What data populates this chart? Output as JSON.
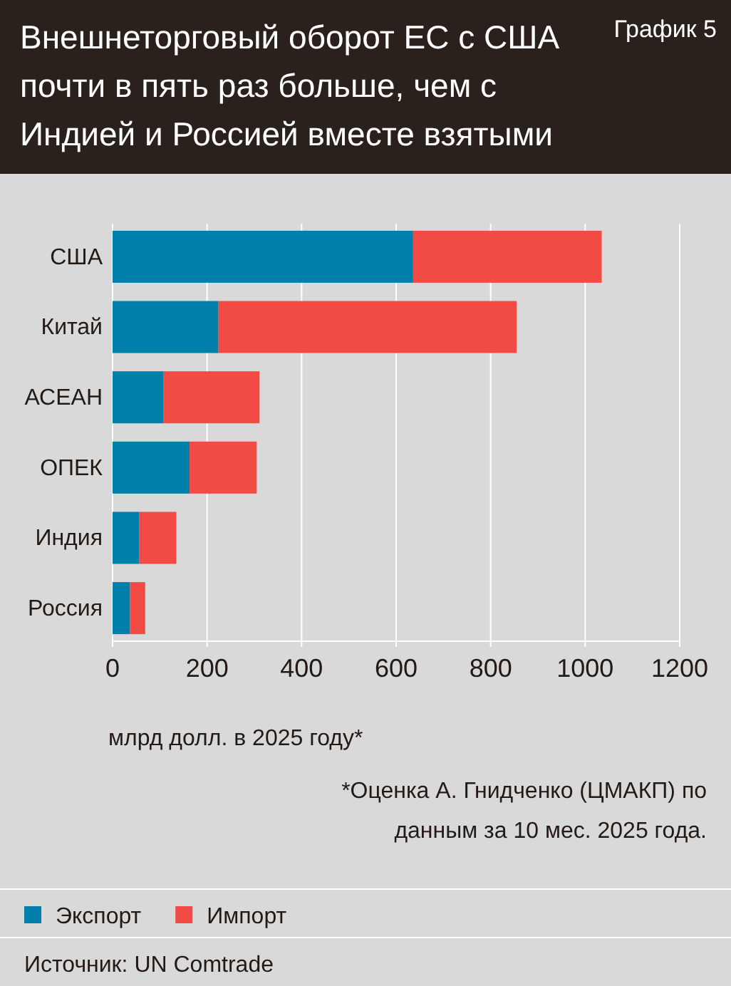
{
  "chart_data": {
    "type": "bar",
    "orientation": "horizontal",
    "stacked": true,
    "title": "Внешнеторговый оборот ЕС с США почти в пять раз больше, чем с Индией и Россией вместе взятыми",
    "xlabel": "млрд долл. в 2025 году*",
    "categories": [
      "США",
      "Китай",
      "АСЕАН",
      "ОПЕК",
      "Индия",
      "Россия"
    ],
    "series": [
      {
        "name": "Экспорт",
        "color": "#007faa",
        "values": [
          636,
          224,
          108,
          163,
          56,
          37
        ]
      },
      {
        "name": "Импорт",
        "color": "#f24a45",
        "values": [
          399,
          631,
          203,
          142,
          79,
          32
        ]
      }
    ],
    "xlim": [
      0,
      1200
    ],
    "xticks": [
      0,
      200,
      400,
      600,
      800,
      1000,
      1200
    ],
    "grid": "x",
    "legend": "bottom",
    "annotations": [
      "График 5",
      "*Оценка А. Гнидченко (ЦМАКП) по данным за 10 мес. 2025 года.",
      "Источник: UN Comtrade"
    ]
  }
}
